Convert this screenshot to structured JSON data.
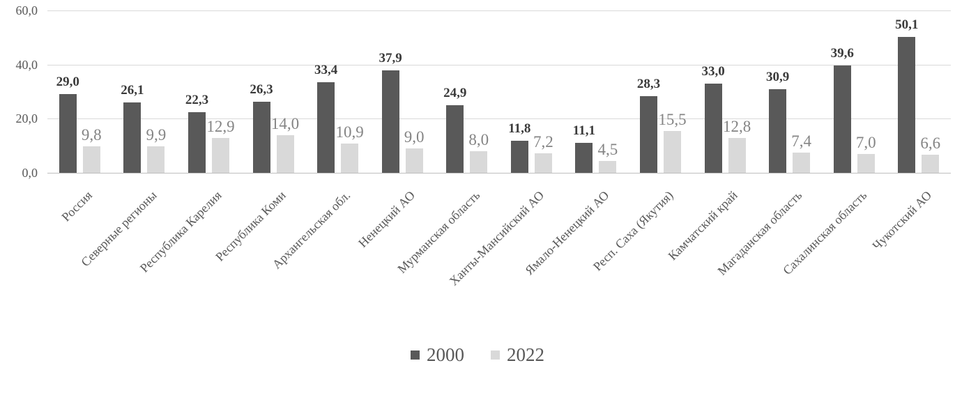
{
  "chart_data": {
    "type": "bar",
    "title": "",
    "xlabel": "",
    "ylabel": "",
    "categories": [
      "Россия",
      "Северные регионы",
      "Республика Карелия",
      "Республика Коми",
      "Архангельская обл.",
      "Ненецкий АО",
      "Мурманская область",
      "Ханты-Мансийский АО",
      "Ямало-Ненецкий АО",
      "Респ. Саха (Якутия)",
      "Камчатский край",
      "Магаданская область",
      "Сахалинская область",
      "Чукотский АО"
    ],
    "series": [
      {
        "name": "2000",
        "color": "#595959",
        "values": [
          29.0,
          26.1,
          22.3,
          26.3,
          33.4,
          37.9,
          24.9,
          11.8,
          11.1,
          28.3,
          33.0,
          30.9,
          39.6,
          50.1
        ],
        "labels": [
          "29,0",
          "26,1",
          "22,3",
          "26,3",
          "33,4",
          "37,9",
          "24,9",
          "11,8",
          "11,1",
          "28,3",
          "33,0",
          "30,9",
          "39,6",
          "50,1"
        ]
      },
      {
        "name": "2022",
        "color": "#d9d9d9",
        "values": [
          9.8,
          9.9,
          12.9,
          14.0,
          10.9,
          9.0,
          8.0,
          7.2,
          4.5,
          15.5,
          12.8,
          7.4,
          7.0,
          6.6
        ],
        "labels": [
          "9,8",
          "9,9",
          "12,9",
          "14,0",
          "10,9",
          "9,0",
          "8,0",
          "7,2",
          "4,5",
          "15,5",
          "12,8",
          "7,4",
          "7,0",
          "6,6"
        ]
      }
    ],
    "ylim": [
      0,
      60
    ],
    "yticks": [
      {
        "value": 0,
        "label": "0,0"
      },
      {
        "value": 20,
        "label": "20,0"
      },
      {
        "value": 40,
        "label": "40,0"
      },
      {
        "value": 60,
        "label": "60,0"
      }
    ],
    "grid": true,
    "legend_position": "bottom",
    "legend": [
      "2000",
      "2022"
    ]
  },
  "colors": {
    "gridline": "#d9d9d9",
    "axis_line": "#bfbfbf",
    "dark_value_label": "#3a3a3a",
    "light_value_label": "#848484",
    "axis_text": "#595959",
    "background": "#ffffff"
  }
}
